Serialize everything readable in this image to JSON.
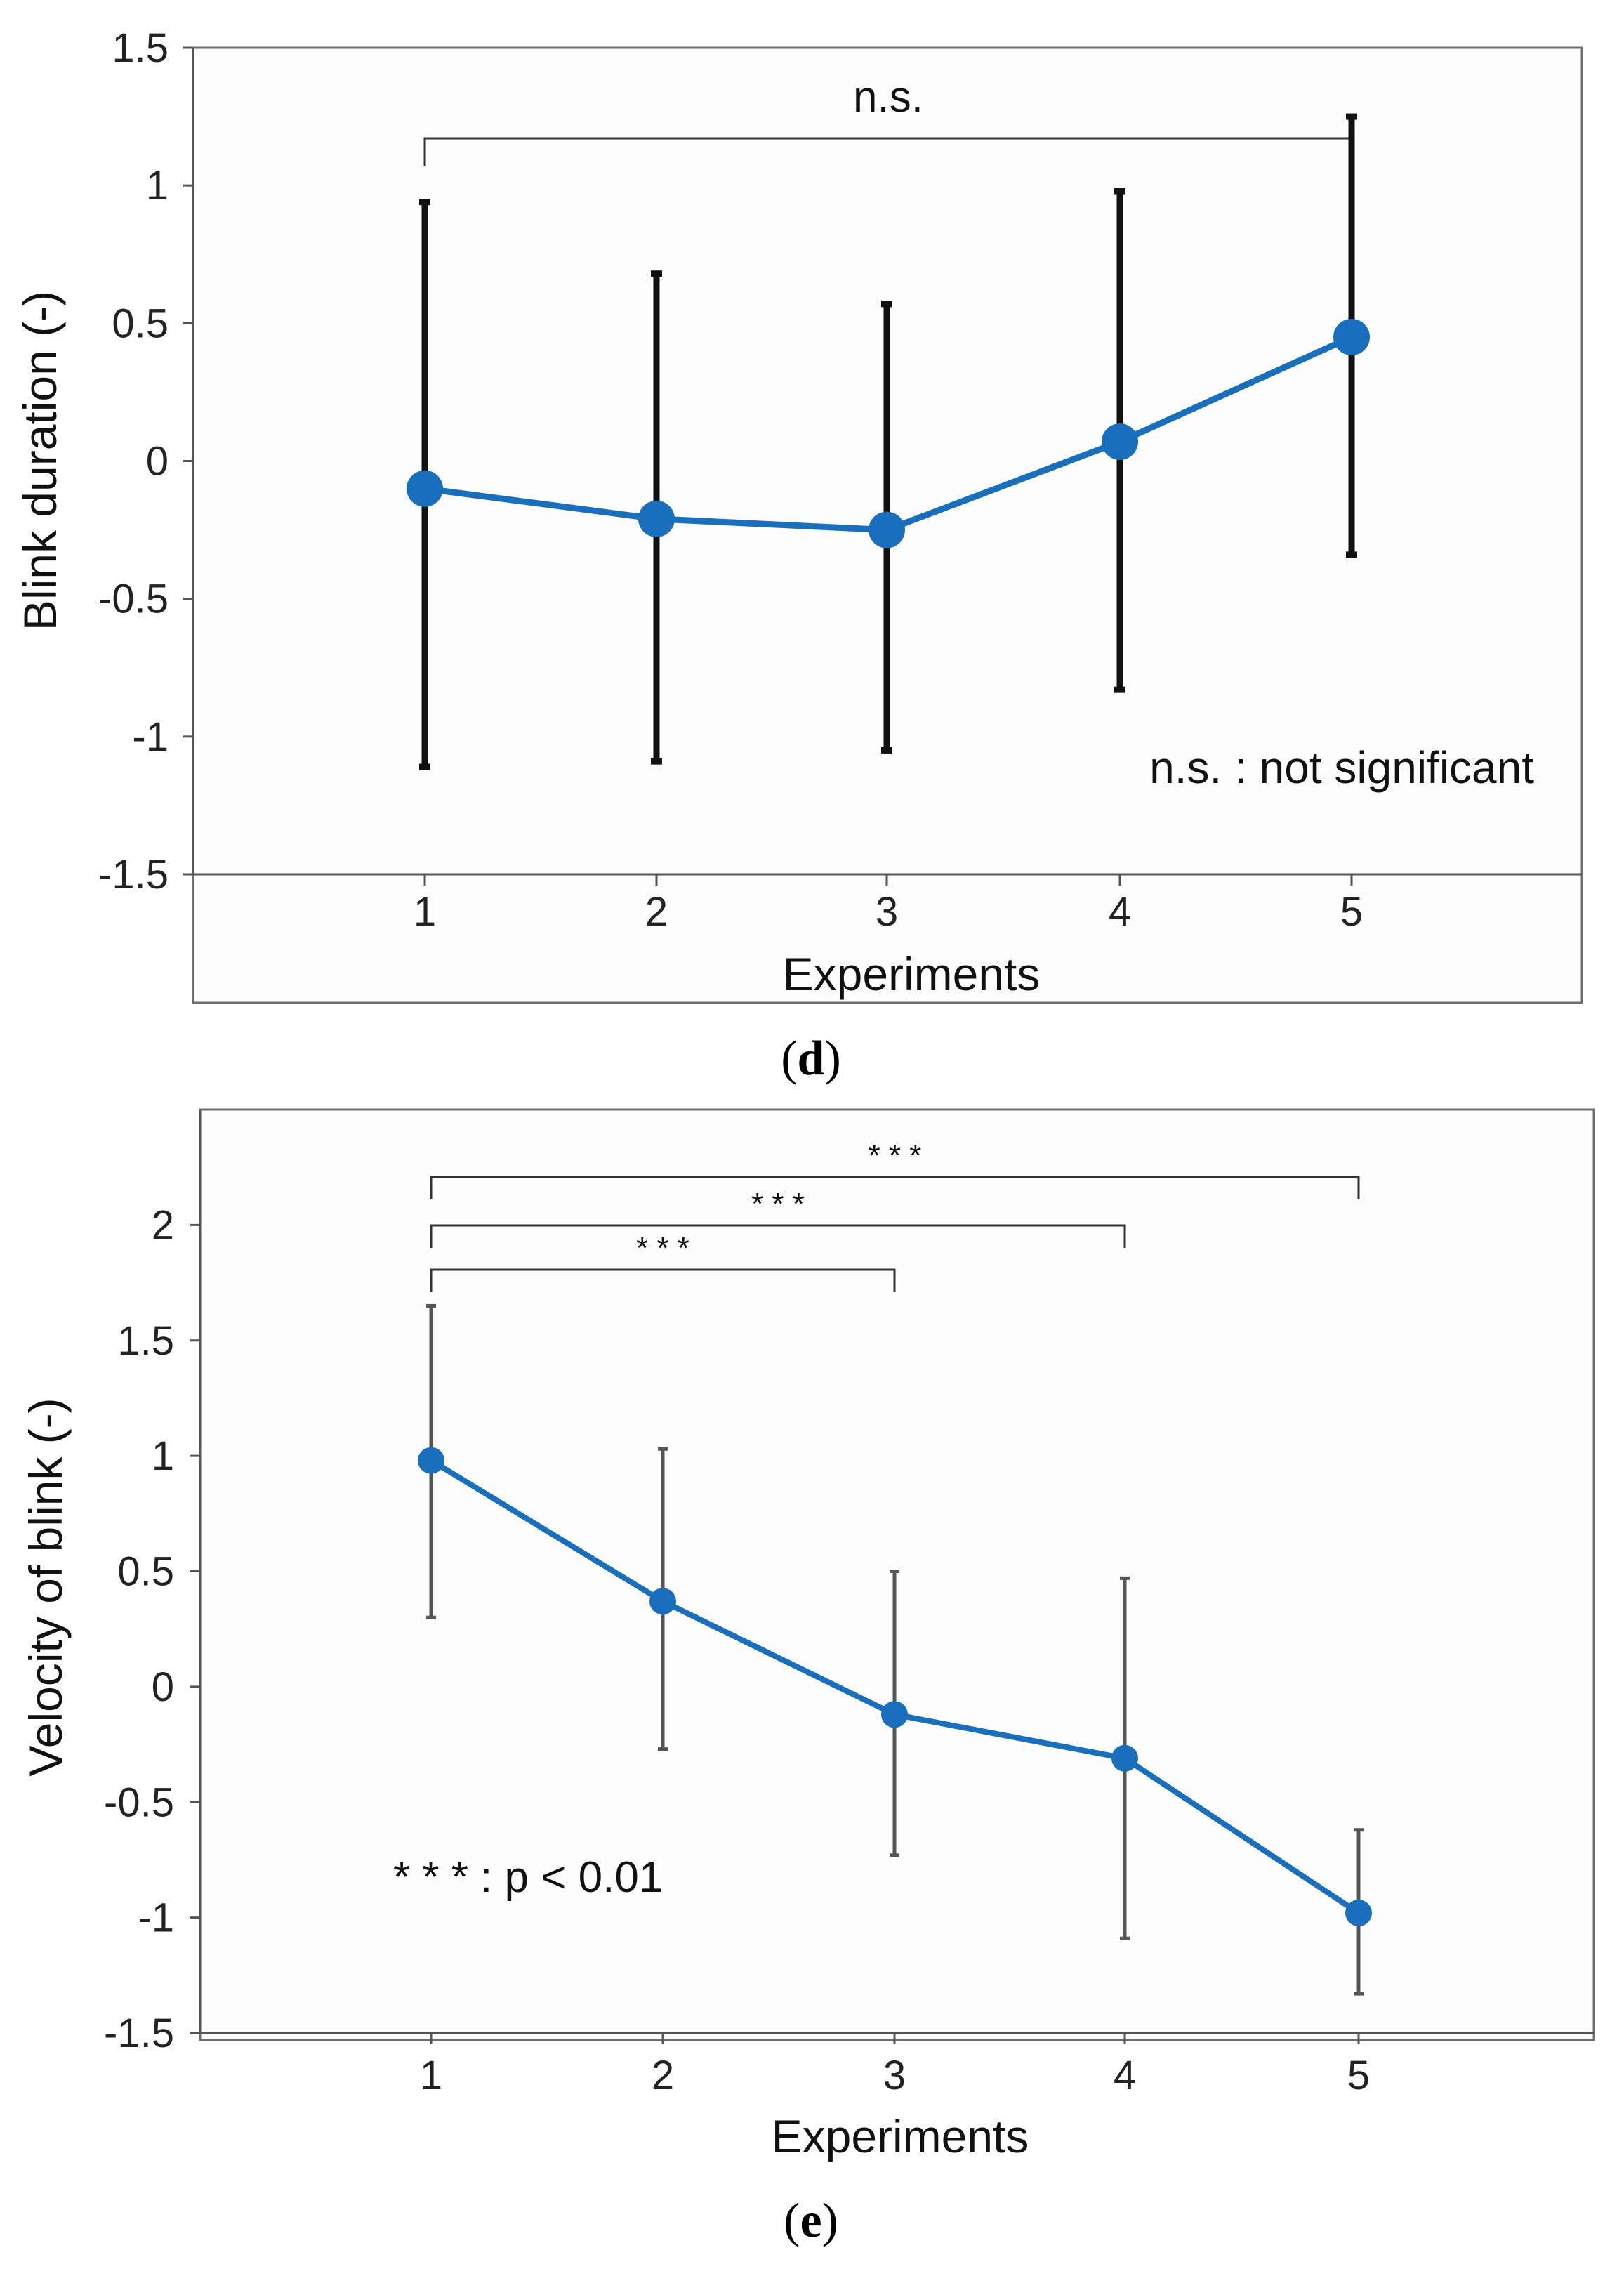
{
  "chart_data": [
    {
      "type": "line",
      "panel_label": "d",
      "xlabel": "Experiments",
      "ylabel": "Blink duration (-)",
      "x": [
        1,
        2,
        3,
        4,
        5
      ],
      "x_tick_labels": [
        "1",
        "2",
        "3",
        "4",
        "5"
      ],
      "ylim": [
        -1.5,
        1.5
      ],
      "y_ticks": [
        -1.5,
        -1,
        -0.5,
        0,
        0.5,
        1,
        1.5
      ],
      "y_tick_labels": [
        "-1.5",
        "-1",
        "-0.5",
        "0",
        "0.5",
        "1",
        "1.5"
      ],
      "grid": false,
      "series": [
        {
          "values": [
            -0.1,
            -0.21,
            -0.25,
            0.07,
            0.45
          ],
          "err_upper": [
            0.94,
            0.68,
            0.57,
            0.98,
            1.25
          ],
          "err_lower": [
            -1.11,
            -1.09,
            -1.05,
            -0.83,
            -0.34
          ],
          "color": "#1a6fbd"
        }
      ],
      "significance": [
        {
          "from": 1,
          "to": 5,
          "label": "n.s."
        }
      ],
      "annotation": "n.s. : not significant"
    },
    {
      "type": "line",
      "panel_label": "e",
      "xlabel": "Experiments",
      "ylabel": "Velocity of blink (-)",
      "x": [
        1,
        2,
        3,
        4,
        5
      ],
      "x_tick_labels": [
        "1",
        "2",
        "3",
        "4",
        "5"
      ],
      "ylim": [
        -1.5,
        2.5
      ],
      "y_ticks": [
        -1.5,
        -1,
        -0.5,
        0,
        0.5,
        1,
        1.5,
        2
      ],
      "y_tick_labels": [
        "-1.5",
        "-1",
        "-0.5",
        "0",
        "0.5",
        "1",
        "1.5",
        "2"
      ],
      "grid": false,
      "series": [
        {
          "values": [
            0.98,
            0.37,
            -0.12,
            -0.31,
            -0.98
          ],
          "err_upper": [
            1.65,
            1.03,
            0.5,
            0.47,
            -0.62
          ],
          "err_lower": [
            0.3,
            -0.27,
            -0.73,
            -1.09,
            -1.33
          ],
          "color": "#1a6fbd"
        }
      ],
      "significance": [
        {
          "from": 1,
          "to": 5,
          "label": "* * *"
        },
        {
          "from": 1,
          "to": 4,
          "label": "* * *"
        },
        {
          "from": 1,
          "to": 3,
          "label": "* * *"
        }
      ],
      "annotation": "* * * : p < 0.01"
    }
  ]
}
